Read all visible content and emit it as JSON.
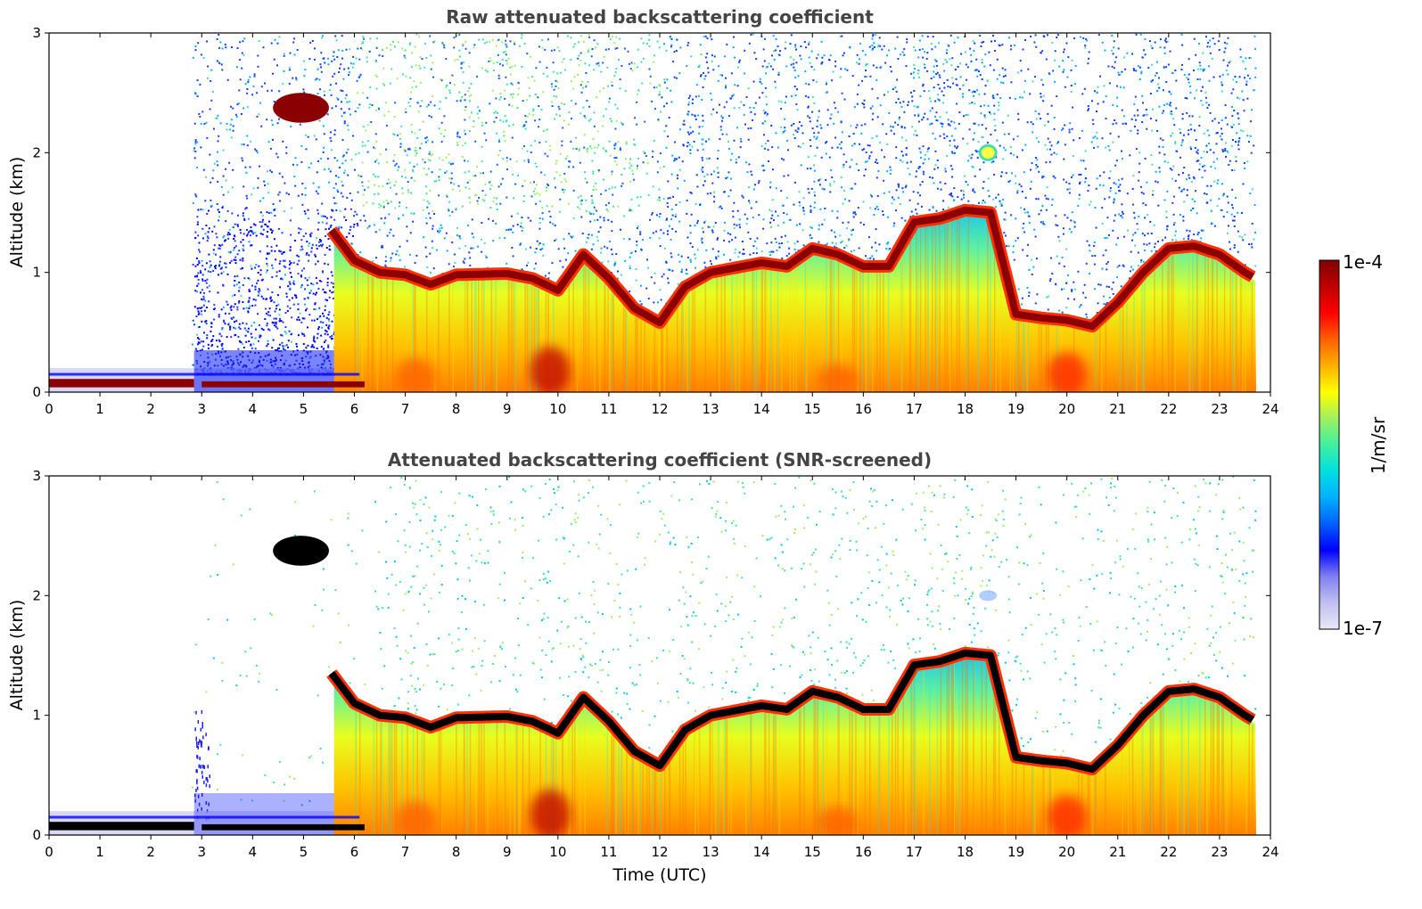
{
  "chart_data": [
    {
      "type": "heatmap",
      "title": "Raw attenuated backscattering coefficient",
      "xlabel": "",
      "ylabel": "Altitude (km)",
      "xlim": [
        0,
        24
      ],
      "ylim": [
        0,
        3
      ],
      "xticks": [
        "0",
        "1",
        "2",
        "3",
        "4",
        "5",
        "6",
        "7",
        "8",
        "9",
        "10",
        "11",
        "12",
        "13",
        "14",
        "15",
        "16",
        "17",
        "18",
        "19",
        "20",
        "21",
        "22",
        "23",
        "24"
      ],
      "yticks": [
        "0",
        "1",
        "2",
        "3"
      ],
      "screened": false,
      "layers": [
        {
          "name": "Nocturnal surface layer",
          "time": [
            0,
            6.2
          ],
          "altitude_km": [
            0.0,
            0.15
          ]
        },
        {
          "name": "Elevated aerosol plume",
          "time": [
            4.4,
            5.5
          ],
          "altitude_km": [
            2.25,
            2.5
          ]
        },
        {
          "name": "Boundary layer top",
          "time": [
            5.5,
            23.7
          ],
          "altitude_km": [
            0.55,
            1.55
          ]
        },
        {
          "name": "Residual layer at 2 km",
          "time": [
            18.3,
            18.6
          ],
          "altitude_km": [
            1.95,
            2.05
          ]
        }
      ],
      "boundary_layer_top": {
        "time": [
          5.5,
          6.0,
          6.5,
          7.0,
          7.5,
          8.0,
          9.0,
          9.5,
          10.0,
          10.5,
          11.0,
          11.5,
          12.0,
          12.5,
          13.0,
          14.0,
          14.5,
          15.0,
          15.5,
          16.0,
          16.5,
          17.0,
          17.5,
          18.0,
          18.5,
          19.0,
          19.5,
          20.0,
          20.5,
          21.0,
          21.5,
          22.0,
          22.5,
          23.0,
          23.5,
          23.7
        ],
        "altitude_km": [
          1.38,
          1.1,
          1.0,
          0.98,
          0.9,
          0.98,
          0.99,
          0.95,
          0.85,
          1.15,
          0.95,
          0.7,
          0.58,
          0.88,
          1.0,
          1.08,
          1.05,
          1.2,
          1.15,
          1.05,
          1.05,
          1.42,
          1.45,
          1.52,
          1.5,
          0.65,
          0.62,
          0.6,
          0.55,
          0.75,
          1.0,
          1.2,
          1.22,
          1.15,
          1.0,
          0.95
        ]
      }
    },
    {
      "type": "heatmap",
      "title": "Attenuated backscattering coefficient (SNR-screened)",
      "xlabel": "Time (UTC)",
      "ylabel": "Altitude (km)",
      "xlim": [
        0,
        24
      ],
      "ylim": [
        0,
        3
      ],
      "xticks": [
        "0",
        "1",
        "2",
        "3",
        "4",
        "5",
        "6",
        "7",
        "8",
        "9",
        "10",
        "11",
        "12",
        "13",
        "14",
        "15",
        "16",
        "17",
        "18",
        "19",
        "20",
        "21",
        "22",
        "23",
        "24"
      ],
      "yticks": [
        "0",
        "1",
        "2",
        "3"
      ],
      "screened": true,
      "layers": [
        {
          "name": "Nocturnal surface layer",
          "time": [
            0,
            6.2
          ],
          "altitude_km": [
            0.0,
            0.15
          ]
        },
        {
          "name": "Elevated aerosol plume",
          "time": [
            4.4,
            5.5
          ],
          "altitude_km": [
            2.25,
            2.5
          ]
        },
        {
          "name": "Boundary layer top",
          "time": [
            5.5,
            23.7
          ],
          "altitude_km": [
            0.55,
            1.55
          ]
        }
      ],
      "boundary_layer_top": {
        "time": [
          5.5,
          6.0,
          6.5,
          7.0,
          7.5,
          8.0,
          9.0,
          9.5,
          10.0,
          10.5,
          11.0,
          11.5,
          12.0,
          12.5,
          13.0,
          14.0,
          14.5,
          15.0,
          15.5,
          16.0,
          16.5,
          17.0,
          17.5,
          18.0,
          18.5,
          19.0,
          19.5,
          20.0,
          20.5,
          21.0,
          21.5,
          22.0,
          22.5,
          23.0,
          23.5,
          23.7
        ],
        "altitude_km": [
          1.38,
          1.1,
          1.0,
          0.98,
          0.9,
          0.98,
          0.99,
          0.95,
          0.85,
          1.15,
          0.95,
          0.7,
          0.58,
          0.88,
          1.0,
          1.08,
          1.05,
          1.2,
          1.15,
          1.05,
          1.05,
          1.42,
          1.45,
          1.52,
          1.5,
          0.65,
          0.62,
          0.6,
          0.55,
          0.75,
          1.0,
          1.2,
          1.22,
          1.15,
          1.0,
          0.95
        ]
      }
    }
  ],
  "colorbar": {
    "label": "1/m/sr",
    "min_label": "1e-7",
    "max_label": "1e-4",
    "colors": [
      "#e8e8f8",
      "#c0c0f0",
      "#8080f0",
      "#0000ff",
      "#0060ff",
      "#00b0ff",
      "#00e0e0",
      "#40f0a0",
      "#a0f060",
      "#ffff00",
      "#ffb000",
      "#ff6000",
      "#ff0000",
      "#c00000",
      "#800000"
    ]
  },
  "colors": {
    "saturated": "#000000",
    "strong": "#8b0000",
    "background_noise": "#1040ff"
  }
}
